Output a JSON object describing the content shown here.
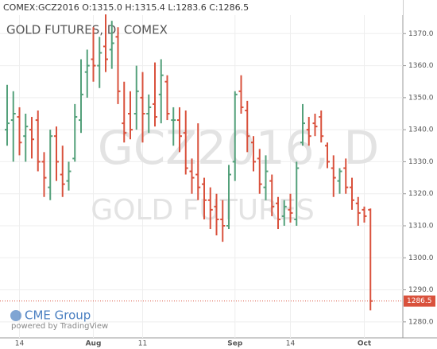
{
  "chart_data": {
    "type": "ohlc",
    "header": "COMEX:GCZ2016 O:1315.0 H:1315.4 L:1283.6 C:1286.5",
    "title": "GOLD FUTURES, D, COMEX",
    "watermark": "GCZ2016, D",
    "watermark_subtitle": "GOLD FUTURES",
    "logo": "CME Group",
    "logo_subtitle": "powered by TradingView",
    "up_color": "#53a07a",
    "down_color": "#d9513c",
    "categories": [
      null,
      null,
      "14",
      null,
      null,
      null,
      null,
      null,
      null,
      null,
      null,
      null,
      null,
      null,
      "Aug",
      null,
      null,
      null,
      null,
      null,
      null,
      null,
      "11",
      null,
      null,
      null,
      null,
      null,
      null,
      null,
      null,
      null,
      null,
      null,
      null,
      null,
      null,
      "Sep",
      null,
      null,
      null,
      null,
      null,
      null,
      null,
      null,
      "14",
      null,
      null,
      null,
      null,
      null,
      null,
      null,
      null,
      null,
      null,
      null,
      "Oct",
      null
    ],
    "open": [
      1340,
      1343,
      1344,
      1338,
      1340,
      1343,
      1330,
      1322,
      1338,
      1326,
      1324,
      1331,
      1343,
      1358,
      1362,
      1360,
      1366,
      1365,
      1369,
      1342,
      1345,
      1345,
      1350,
      1345,
      1348,
      1351,
      1355,
      1343,
      1343,
      1339,
      1327,
      1326,
      1323,
      1318,
      1316,
      1312,
      1310,
      1330,
      1352,
      1346,
      1336,
      1331,
      1322,
      1324,
      1317,
      1313,
      1315,
      1312,
      1336,
      1340,
      1342,
      1344,
      1335,
      1328,
      1324,
      1328,
      1322,
      1317,
      1315,
      1315.0
    ],
    "high": [
      1354,
      1352,
      1347,
      1345,
      1344,
      1346,
      1333,
      1340,
      1341,
      1335,
      1330,
      1348,
      1362,
      1365,
      1372,
      1369,
      1376,
      1374,
      1372,
      1355,
      1352,
      1360,
      1358,
      1351,
      1361,
      1362,
      1357,
      1347,
      1347,
      1346,
      1331,
      1342,
      1325,
      1322,
      1320,
      1318,
      1329,
      1352,
      1357,
      1349,
      1338,
      1334,
      1332,
      1326,
      1319,
      1318,
      1320,
      1330,
      1348,
      1344,
      1345,
      1346,
      1336,
      1332,
      1328,
      1331,
      1325,
      1319,
      1316,
      1315.4
    ],
    "low": [
      1335,
      1330,
      1332,
      1330,
      1331,
      1327,
      1319,
      1318,
      1324,
      1319,
      1321,
      1330,
      1339,
      1350,
      1355,
      1353,
      1358,
      1359,
      1348,
      1336,
      1337,
      1340,
      1336,
      1339,
      1341,
      1342,
      1343,
      1335,
      1333,
      1326,
      1320,
      1318,
      1312,
      1309,
      1307,
      1305,
      1309,
      1324,
      1345,
      1333,
      1327,
      1320,
      1318,
      1313,
      1309,
      1310,
      1311,
      1310,
      1335,
      1335,
      1338,
      1336,
      1328,
      1319,
      1320,
      1320,
      1315,
      1310,
      1311,
      1283.6
    ],
    "close": [
      1342,
      1345,
      1336,
      1341,
      1337,
      1330,
      1325,
      1338,
      1330,
      1323,
      1327,
      1344,
      1351,
      1360,
      1360,
      1364,
      1362,
      1367,
      1352,
      1339,
      1340,
      1352,
      1345,
      1347,
      1344,
      1357,
      1345,
      1343,
      1338,
      1328,
      1325,
      1322,
      1318,
      1315,
      1312,
      1310,
      1326,
      1351,
      1347,
      1338,
      1330,
      1323,
      1327,
      1316,
      1312,
      1316,
      1314,
      1328,
      1342,
      1338,
      1341,
      1338,
      1330,
      1325,
      1327,
      1322,
      1318,
      1314,
      1313,
      1286.5
    ],
    "ylim": [
      1275,
      1380.5
    ],
    "yticks": [
      {
        "value": 1280,
        "label": "1280.0"
      },
      {
        "value": 1290,
        "label": "1290.0"
      },
      {
        "value": 1300,
        "label": "1300.0"
      },
      {
        "value": 1310,
        "label": "1310.0"
      },
      {
        "value": 1320,
        "label": "1320.0"
      },
      {
        "value": 1330,
        "label": "1330.0"
      },
      {
        "value": 1340,
        "label": "1340.0"
      },
      {
        "value": 1350,
        "label": "1350.0"
      },
      {
        "value": 1360,
        "label": "1360.0"
      },
      {
        "value": 1370,
        "label": "1370.0"
      }
    ],
    "last_price": {
      "value": 1286.5,
      "label": "1286.5"
    },
    "grid": true
  }
}
